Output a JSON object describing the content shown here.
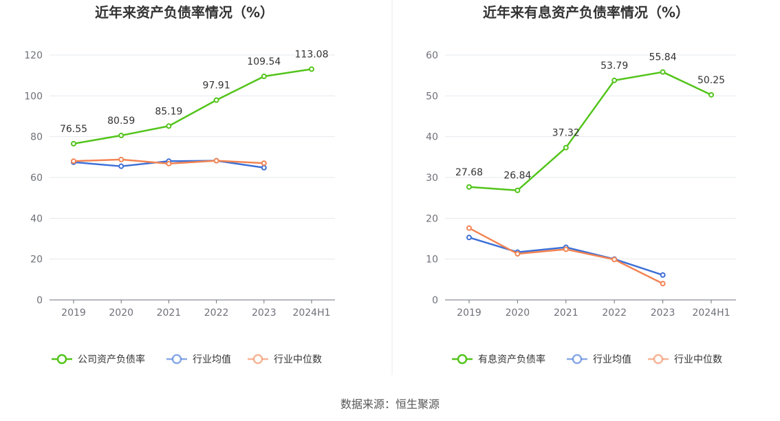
{
  "chart_data": [
    {
      "type": "line",
      "title": "近年来资产负债率情况（%）",
      "categories": [
        "2019",
        "2020",
        "2021",
        "2022",
        "2023",
        "2024H1"
      ],
      "ylim": [
        0,
        120
      ],
      "yticks": [
        0,
        20,
        40,
        60,
        80,
        100,
        120
      ],
      "grid": true,
      "legend_position": "bottom",
      "series": [
        {
          "name": "公司资产负债率",
          "color": "#52c41a",
          "values": [
            76.55,
            80.59,
            85.19,
            97.91,
            109.54,
            113.08
          ],
          "labels": [
            "76.55",
            "80.59",
            "85.19",
            "97.91",
            "109.54",
            "113.08"
          ]
        },
        {
          "name": "行业均值",
          "color": "#3c6fd6",
          "values": [
            67.5,
            65.5,
            68.0,
            68.2,
            64.8,
            null
          ]
        },
        {
          "name": "行业中位数",
          "color": "#f28352",
          "values": [
            68.0,
            68.8,
            66.8,
            68.2,
            67.0,
            null
          ]
        }
      ]
    },
    {
      "type": "line",
      "title": "近年来有息资产负债率情况（%）",
      "categories": [
        "2019",
        "2020",
        "2021",
        "2022",
        "2023",
        "2024H1"
      ],
      "ylim": [
        0,
        60
      ],
      "yticks": [
        0,
        10,
        20,
        30,
        40,
        50,
        60
      ],
      "grid": true,
      "legend_position": "bottom",
      "series": [
        {
          "name": "有息资产负债率",
          "color": "#52c41a",
          "values": [
            27.68,
            26.84,
            37.32,
            53.79,
            55.84,
            50.25
          ],
          "labels": [
            "27.68",
            "26.84",
            "37.32",
            "53.79",
            "55.84",
            "50.25"
          ]
        },
        {
          "name": "行业均值",
          "color": "#3c6fd6",
          "values": [
            15.3,
            11.7,
            12.9,
            10.0,
            6.1,
            null
          ]
        },
        {
          "name": "行业中位数",
          "color": "#f28352",
          "values": [
            17.6,
            11.3,
            12.4,
            9.9,
            4.0,
            null
          ]
        }
      ]
    }
  ],
  "source": "数据来源：恒生聚源"
}
